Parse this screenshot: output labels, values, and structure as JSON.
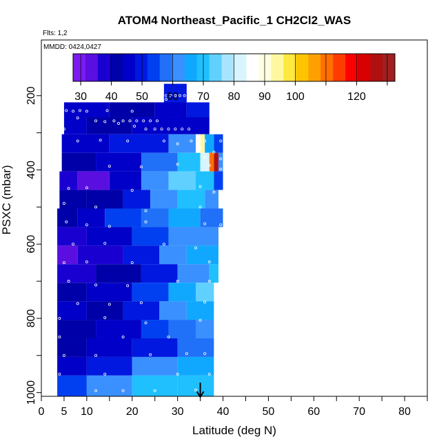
{
  "chart_data": {
    "type": "heatmap",
    "title": "ATOM4 Northeast_Pacific_1 CH2Cl2_WAS",
    "flights_label": "Flts: 1,2",
    "dates_label": "MMDD: 0424,0427",
    "xlabel": "Latitude (deg N)",
    "ylabel": "PSXC (mbar)",
    "xlim": [
      0,
      85
    ],
    "ylim": [
      1010,
      50
    ],
    "x_ticks": [
      0,
      5,
      10,
      20,
      30,
      40,
      50,
      60,
      70,
      80
    ],
    "x_minor_ticks": [
      15,
      25,
      35,
      45,
      55,
      65,
      75,
      85
    ],
    "y_ticks": [
      200,
      400,
      600,
      800,
      1000
    ],
    "y_minor_ticks": [
      300,
      500,
      700,
      900
    ],
    "colorbar": {
      "min": 27.5,
      "max": 132.5,
      "tick_labels": [
        30,
        40,
        50,
        60,
        70,
        80,
        90,
        100,
        120
      ],
      "tick_marks": [
        30,
        40,
        50,
        60,
        70,
        80,
        90,
        100,
        110,
        120,
        130
      ],
      "colors": [
        "#7a1cf0",
        "#5a0fe0",
        "#1a00d0",
        "#0000a8",
        "#0000c8",
        "#0018e0",
        "#0040f0",
        "#2070f8",
        "#3a90ff",
        "#10a8ff",
        "#20c0ff",
        "#60d0ff",
        "#a8e4ff",
        "#d8f4ff",
        "#ffffff",
        "#ffffe0",
        "#fff8a0",
        "#ffe840",
        "#ffc400",
        "#ffa000",
        "#ff7000",
        "#ff3c00",
        "#ff0000",
        "#d80000",
        "#b01010",
        "#a02020"
      ]
    },
    "rows": [
      {
        "p_top": 168,
        "p_bot": 218,
        "segments": [
          [
            27,
            32,
            50
          ]
        ]
      },
      {
        "p_top": 218,
        "p_bot": 258,
        "segments": [
          [
            5,
            15,
            45
          ],
          [
            15,
            25,
            42
          ],
          [
            25,
            32,
            46
          ],
          [
            32,
            37,
            48
          ]
        ]
      },
      {
        "p_top": 258,
        "p_bot": 304,
        "segments": [
          [
            5,
            10,
            44
          ],
          [
            10,
            20,
            40
          ],
          [
            20,
            28,
            45
          ],
          [
            28,
            37,
            47
          ]
        ]
      },
      {
        "p_top": 304,
        "p_bot": 354,
        "segments": [
          [
            4.5,
            15,
            45
          ],
          [
            15,
            28,
            48
          ],
          [
            28,
            34,
            60
          ],
          [
            34,
            35,
            85
          ],
          [
            35,
            36,
            95
          ],
          [
            36,
            38,
            65
          ],
          [
            38,
            40,
            55
          ]
        ]
      },
      {
        "p_top": 354,
        "p_bot": 404,
        "segments": [
          [
            4.5,
            12,
            40
          ],
          [
            12,
            22,
            45
          ],
          [
            22,
            30,
            58
          ],
          [
            30,
            35,
            70
          ],
          [
            35,
            37,
            80
          ],
          [
            37,
            38,
            110
          ],
          [
            38,
            39,
            125
          ],
          [
            39,
            40,
            60
          ]
        ]
      },
      {
        "p_top": 404,
        "p_bot": 454,
        "segments": [
          [
            4,
            8,
            38
          ],
          [
            8,
            15,
            35
          ],
          [
            15,
            22,
            45
          ],
          [
            22,
            28,
            60
          ],
          [
            28,
            34,
            75
          ],
          [
            34,
            38,
            68
          ],
          [
            38,
            40,
            55
          ]
        ]
      },
      {
        "p_top": 454,
        "p_bot": 504,
        "segments": [
          [
            4,
            10,
            42
          ],
          [
            10,
            18,
            40
          ],
          [
            18,
            24,
            48
          ],
          [
            24,
            30,
            62
          ],
          [
            30,
            36,
            68
          ],
          [
            36,
            39,
            60
          ]
        ]
      },
      {
        "p_top": 504,
        "p_bot": 554,
        "segments": [
          [
            3.5,
            8,
            40
          ],
          [
            8,
            14,
            45
          ],
          [
            14,
            22,
            52
          ],
          [
            22,
            28,
            58
          ],
          [
            28,
            35,
            64
          ],
          [
            35,
            40,
            58
          ]
        ]
      },
      {
        "p_top": 554,
        "p_bot": 604,
        "segments": [
          [
            3.5,
            10,
            38
          ],
          [
            10,
            20,
            44
          ],
          [
            20,
            28,
            52
          ],
          [
            28,
            34,
            62
          ],
          [
            34,
            39,
            60
          ]
        ]
      },
      {
        "p_top": 604,
        "p_bot": 654,
        "segments": [
          [
            3.5,
            8,
            32
          ],
          [
            8,
            18,
            38
          ],
          [
            18,
            26,
            48
          ],
          [
            26,
            32,
            60
          ],
          [
            32,
            39,
            66
          ]
        ]
      },
      {
        "p_top": 654,
        "p_bot": 704,
        "segments": [
          [
            3.5,
            12,
            38
          ],
          [
            12,
            22,
            42
          ],
          [
            22,
            30,
            50
          ],
          [
            30,
            37,
            62
          ],
          [
            37,
            39,
            68
          ]
        ]
      },
      {
        "p_top": 704,
        "p_bot": 754,
        "segments": [
          [
            3.5,
            10,
            40
          ],
          [
            10,
            20,
            45
          ],
          [
            20,
            28,
            55
          ],
          [
            28,
            34,
            65
          ],
          [
            34,
            38,
            72
          ]
        ]
      },
      {
        "p_top": 754,
        "p_bot": 804,
        "segments": [
          [
            3.5,
            10,
            44
          ],
          [
            10,
            18,
            42
          ],
          [
            18,
            26,
            50
          ],
          [
            26,
            32,
            60
          ],
          [
            32,
            38,
            66
          ]
        ]
      },
      {
        "p_top": 804,
        "p_bot": 854,
        "segments": [
          [
            3.5,
            12,
            42
          ],
          [
            12,
            22,
            46
          ],
          [
            22,
            28,
            52
          ],
          [
            28,
            34,
            58
          ],
          [
            34,
            38,
            62
          ]
        ]
      },
      {
        "p_top": 854,
        "p_bot": 904,
        "segments": [
          [
            3.5,
            10,
            40
          ],
          [
            10,
            20,
            44
          ],
          [
            20,
            30,
            50
          ],
          [
            30,
            38,
            56
          ]
        ]
      },
      {
        "p_top": 904,
        "p_bot": 954,
        "segments": [
          [
            3.5,
            10,
            44
          ],
          [
            10,
            20,
            50
          ],
          [
            20,
            30,
            62
          ],
          [
            30,
            38,
            66
          ]
        ]
      },
      {
        "p_top": 954,
        "p_bot": 1010,
        "segments": [
          [
            3.5,
            10,
            55
          ],
          [
            10,
            20,
            62
          ],
          [
            20,
            30,
            70
          ],
          [
            30,
            38,
            68
          ]
        ]
      }
    ],
    "samples": [
      [
        27.5,
        200
      ],
      [
        28.5,
        200
      ],
      [
        29.5,
        200
      ],
      [
        30.5,
        200
      ],
      [
        31.5,
        200
      ],
      [
        27.5,
        210
      ],
      [
        5.5,
        240
      ],
      [
        7,
        242
      ],
      [
        8.5,
        240
      ],
      [
        10,
        242
      ],
      [
        14.5,
        240
      ],
      [
        20,
        242
      ],
      [
        8,
        260
      ],
      [
        12,
        268
      ],
      [
        14,
        270
      ],
      [
        16,
        268
      ],
      [
        18,
        268
      ],
      [
        19.5,
        268
      ],
      [
        21,
        268
      ],
      [
        22.5,
        268
      ],
      [
        24,
        268
      ],
      [
        25.5,
        268
      ],
      [
        17,
        275
      ],
      [
        20.5,
        282
      ],
      [
        23,
        290
      ],
      [
        25,
        290
      ],
      [
        26.5,
        290
      ],
      [
        28,
        290
      ],
      [
        29.5,
        290
      ],
      [
        31,
        290
      ],
      [
        32.5,
        290
      ],
      [
        5,
        290
      ],
      [
        8,
        322
      ],
      [
        13,
        320
      ],
      [
        19,
        322
      ],
      [
        27,
        322
      ],
      [
        33,
        322
      ],
      [
        36,
        322
      ],
      [
        39.5,
        322
      ],
      [
        30,
        330
      ],
      [
        35,
        340
      ],
      [
        38,
        352
      ],
      [
        36,
        366
      ],
      [
        39.5,
        370
      ],
      [
        15,
        390
      ],
      [
        22,
        392
      ],
      [
        30,
        385
      ],
      [
        37,
        388
      ],
      [
        39.5,
        398
      ],
      [
        6,
        450
      ],
      [
        10,
        448
      ],
      [
        20,
        455
      ],
      [
        35,
        445
      ],
      [
        38,
        460
      ],
      [
        5,
        490
      ],
      [
        12,
        500
      ],
      [
        23,
        510
      ],
      [
        35,
        500
      ],
      [
        5.5,
        540
      ],
      [
        10,
        548
      ],
      [
        15,
        552
      ],
      [
        23,
        540
      ],
      [
        36,
        545
      ],
      [
        39.5,
        548
      ],
      [
        7,
        600
      ],
      [
        14,
        598
      ],
      [
        27,
        600
      ],
      [
        34,
        610
      ],
      [
        5,
        650
      ],
      [
        10,
        648
      ],
      [
        20,
        650
      ],
      [
        37,
        648
      ],
      [
        6,
        700
      ],
      [
        12,
        710
      ],
      [
        19,
        712
      ],
      [
        30,
        700
      ],
      [
        37,
        700
      ],
      [
        8,
        760
      ],
      [
        15,
        762
      ],
      [
        22,
        758
      ],
      [
        36,
        756
      ],
      [
        4,
        800
      ],
      [
        14,
        798
      ],
      [
        23,
        812
      ],
      [
        35,
        805
      ],
      [
        4,
        850
      ],
      [
        18,
        850
      ],
      [
        28,
        850
      ],
      [
        5,
        900
      ],
      [
        12,
        900
      ],
      [
        24,
        898
      ],
      [
        32,
        895
      ],
      [
        36,
        895
      ],
      [
        4,
        950
      ],
      [
        14,
        950
      ],
      [
        30,
        950
      ],
      [
        37,
        950
      ],
      [
        12,
        995
      ],
      [
        18,
        995
      ],
      [
        25,
        995
      ],
      [
        34,
        993
      ]
    ],
    "arrow_latitude": 35
  }
}
